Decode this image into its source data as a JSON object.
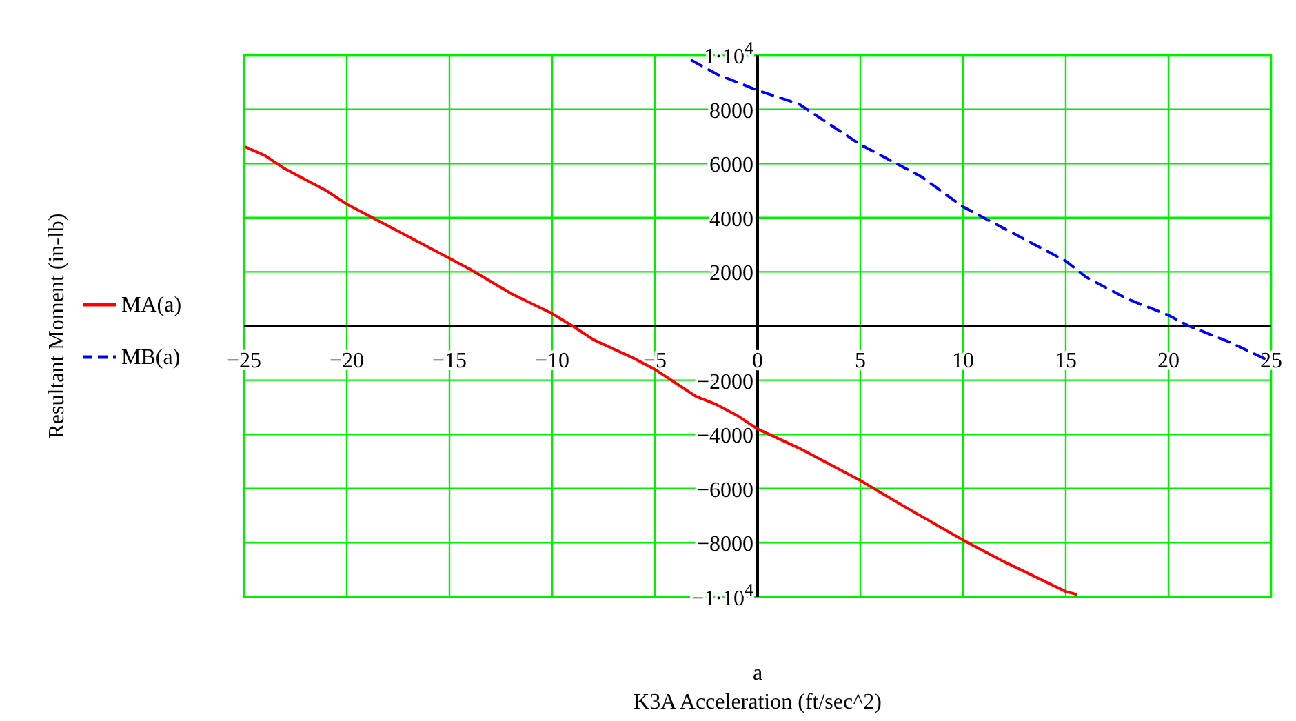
{
  "chart_data": {
    "type": "line",
    "xlabel": "a",
    "annotations": [
      "K3A Acceleration (ft/sec^2)",
      "Resultant Moment (in-lb)"
    ],
    "xlim": [
      -25,
      25
    ],
    "ylim": [
      -10000,
      10000
    ],
    "xticks": [
      {
        "value": -25,
        "label": "−25"
      },
      {
        "value": -20,
        "label": "−20"
      },
      {
        "value": -15,
        "label": "−15"
      },
      {
        "value": -10,
        "label": "−10"
      },
      {
        "value": -5,
        "label": "−5"
      },
      0,
      5,
      10,
      15,
      20,
      25
    ],
    "yticks": [
      {
        "value": -10000,
        "label": "−1·10$^{4}$"
      },
      {
        "value": -8000,
        "label": "−8000"
      },
      {
        "value": -6000,
        "label": "−6000"
      },
      {
        "value": -4000,
        "label": "−4000"
      },
      {
        "value": -2000,
        "label": "−2000"
      },
      2000,
      4000,
      6000,
      8000,
      {
        "value": 10000,
        "label": "1·10$^{4}$"
      }
    ],
    "grid": true,
    "legend": "left",
    "series": [
      {
        "name": "MA(a)",
        "color": "#ff0000",
        "line_style": "solid",
        "x": [
          -24.9,
          -24,
          -23,
          -22,
          -21,
          -20,
          -18,
          -16,
          -15,
          -14,
          -12,
          -10,
          -9,
          -8,
          -6,
          -5,
          -4,
          -3,
          -2,
          -1,
          0,
          2,
          5,
          7,
          10,
          12,
          15,
          15.5
        ],
        "values": [
          6600,
          6300,
          5800,
          5400,
          5000,
          4500,
          3700,
          2900,
          2500,
          2100,
          1200,
          460,
          0,
          -500,
          -1200,
          -1600,
          -2100,
          -2600,
          -2900,
          -3300,
          -3800,
          -4500,
          -5700,
          -6600,
          -7900,
          -8700,
          -9800,
          -9900
        ]
      },
      {
        "name": "MB(a)",
        "color": "#0000ff",
        "line_style": "dashed",
        "x": [
          -3.2,
          -2,
          0,
          2,
          3,
          5,
          7,
          8,
          10,
          12,
          15,
          16,
          17,
          18,
          20,
          21,
          23,
          24.8
        ],
        "values": [
          9800,
          9300,
          8700,
          8200,
          7700,
          6700,
          5900,
          5500,
          4400,
          3600,
          2400,
          1800,
          1400,
          1000,
          400,
          0,
          -600,
          -1250
        ]
      }
    ]
  }
}
